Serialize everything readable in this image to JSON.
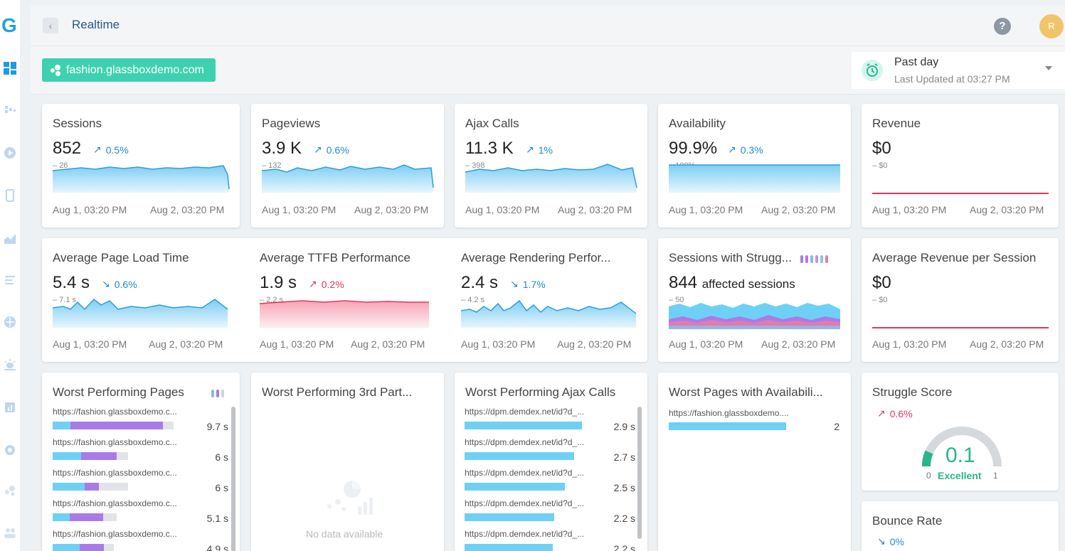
{
  "header": {
    "title": "Realtime",
    "avatar_initial": "R",
    "help_glyph": "?"
  },
  "subbar": {
    "app_name": "fashion.glassboxdemo.com",
    "range_title": "Past day",
    "range_sub": "Last Updated at 03:27 PM"
  },
  "sidebar": {
    "logo": "G",
    "icons": [
      "dashboard-icon",
      "journey-icon",
      "play-icon",
      "mobile-icon",
      "analytics-icon",
      "list-icon",
      "globe-icon",
      "alert-icon",
      "report-icon",
      "gear-icon",
      "apps-icon",
      "users-icon"
    ]
  },
  "dates": {
    "start": "Aug 1, 03:20 PM",
    "end": "Aug 2, 03:20 PM"
  },
  "row1": [
    {
      "title": "Sessions",
      "value": "852",
      "trend": "0.5%",
      "ref": "26"
    },
    {
      "title": "Pageviews",
      "value": "3.9 K",
      "trend": "0.6%",
      "ref": "132"
    },
    {
      "title": "Ajax Calls",
      "value": "11.3 K",
      "trend": "1%",
      "ref": "398"
    },
    {
      "title": "Availability",
      "value": "99.9%",
      "trend": "0.3%",
      "ref": "100%"
    },
    {
      "title": "Revenue",
      "value": "$0",
      "trend": "",
      "ref": "$0"
    }
  ],
  "row2": [
    {
      "title": "Average Page Load Time",
      "value": "5.4 s",
      "trend": "0.6%",
      "ref": "7.1 s"
    },
    {
      "title": "Average TTFB Performance",
      "value": "1.9 s",
      "trend": "0.2%",
      "ref": "2.2 s"
    },
    {
      "title": "Average Rendering Perfor...",
      "value": "2.4 s",
      "trend": "1.7%",
      "ref": "4.2 s"
    },
    {
      "title": "Sessions with Strugg...",
      "value": "844",
      "value_suffix": "affected sessions",
      "ref": "50"
    },
    {
      "title": "Average Revenue per Session",
      "value": "$0",
      "ref": "$0"
    }
  ],
  "worst_pages": {
    "title": "Worst Performing Pages",
    "items": [
      {
        "url": "https://fashion.glassboxdemo.c...",
        "value": "9.7 s"
      },
      {
        "url": "https://fashion.glassboxdemo.c...",
        "value": "6 s"
      },
      {
        "url": "https://fashion.glassboxdemo.c...",
        "value": "6 s"
      },
      {
        "url": "https://fashion.glassboxdemo.c...",
        "value": "5.1 s"
      },
      {
        "url": "https://fashion.glassboxdemo.c...",
        "value": "4.9 s"
      }
    ]
  },
  "worst_third": {
    "title": "Worst Performing 3rd Part...",
    "no_data": "No data available"
  },
  "worst_ajax": {
    "title": "Worst Performing Ajax Calls",
    "items": [
      {
        "url": "https://dpm.demdex.net/id?d_...",
        "value": "2.9 s"
      },
      {
        "url": "https://dpm.demdex.net/id?d_...",
        "value": "2.7 s"
      },
      {
        "url": "https://dpm.demdex.net/id?d_...",
        "value": "2.5 s"
      },
      {
        "url": "https://dpm.demdex.net/id?d_...",
        "value": "2.2 s"
      },
      {
        "url": "https://dpm.demdex.net/id?d_...",
        "value": "2.2 s"
      }
    ]
  },
  "worst_avail": {
    "title": "Worst Pages with Availabili...",
    "items": [
      {
        "url": "https://fashion.glassboxdemo....",
        "value": "2"
      }
    ]
  },
  "struggle": {
    "title": "Struggle Score",
    "trend": "0.6%",
    "score": "0.1",
    "label": "Excellent",
    "min": "0",
    "max": "1"
  },
  "bounce": {
    "title": "Bounce Rate",
    "trend": "0%"
  },
  "colors": {
    "accent_blue": "#1e8bd3",
    "alert_red": "#e8335c",
    "teal": "#3ed1b0",
    "bar_blue": "#6fd0f6",
    "bar_purple": "#a97be8"
  }
}
